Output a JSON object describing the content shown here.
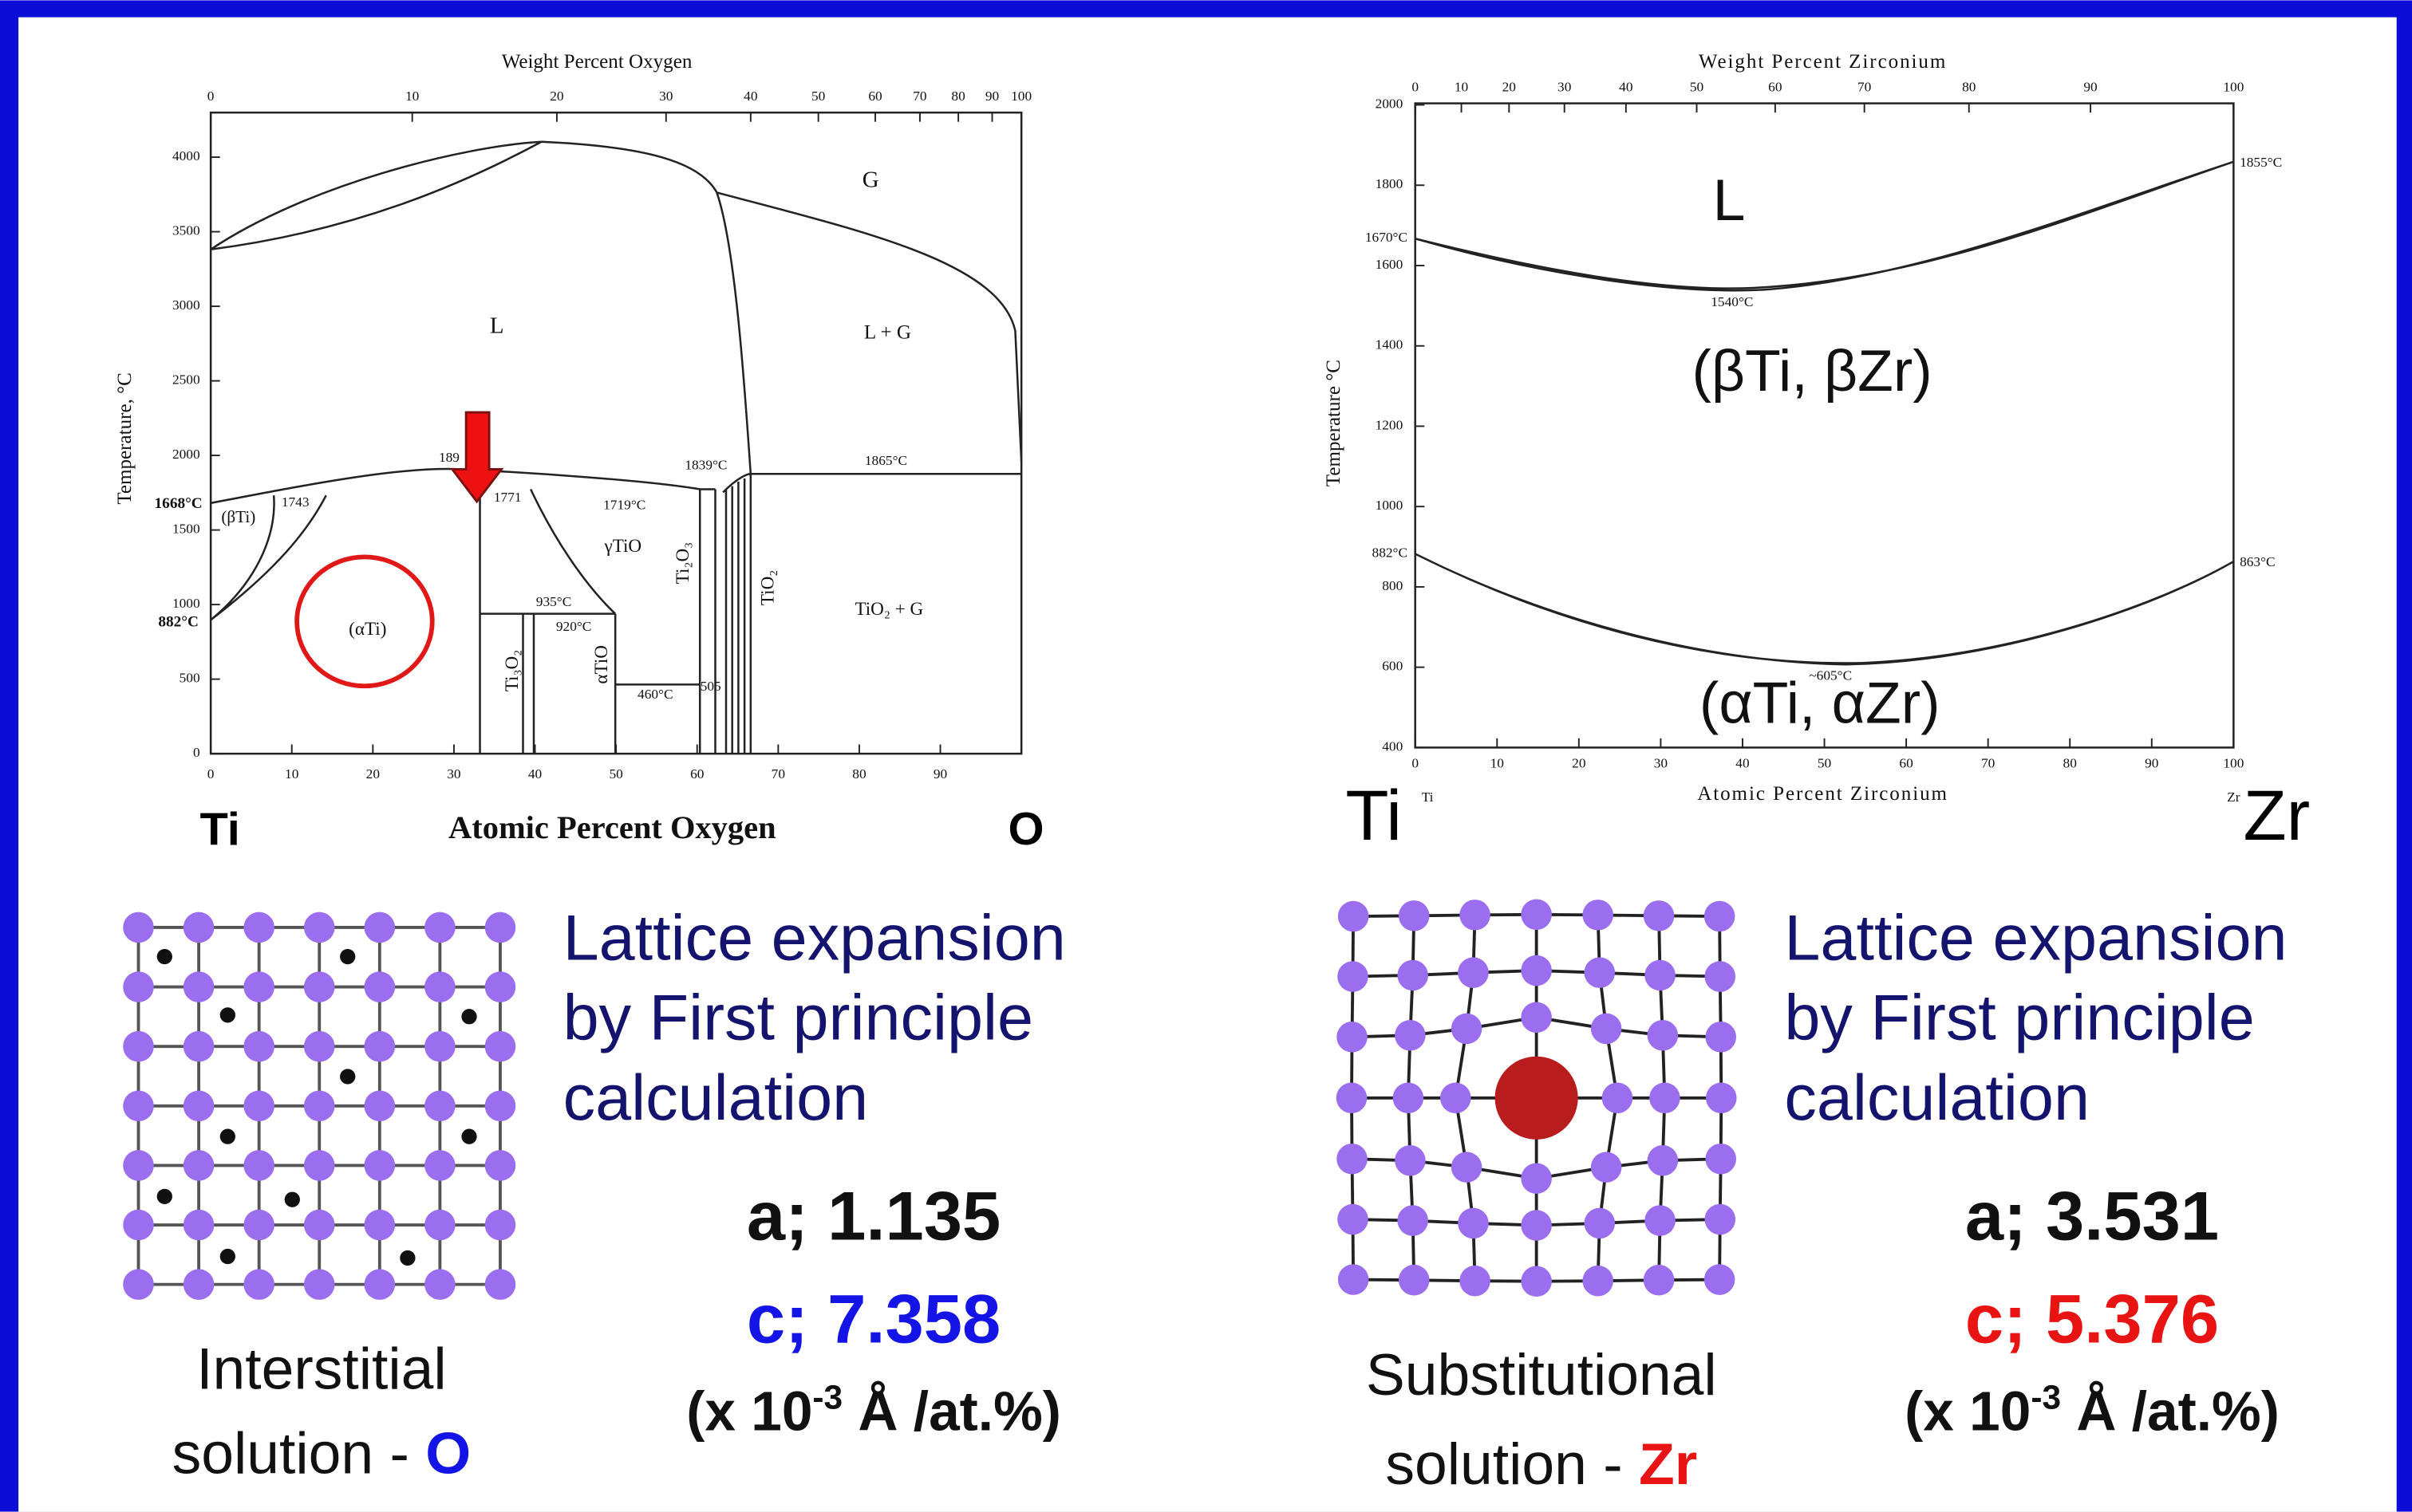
{
  "left_diagram": {
    "top_axis_title": "Weight Percent Oxygen",
    "top_ticks": [
      0,
      10,
      20,
      30,
      40,
      50,
      60,
      70,
      80,
      90,
      100
    ],
    "y_axis_title": "Temperature, °C",
    "y_ticks": [
      0,
      500,
      1000,
      1500,
      2000,
      2500,
      3000,
      3500,
      4000
    ],
    "x_ticks": [
      0,
      10,
      20,
      30,
      40,
      50,
      60,
      70,
      80,
      90
    ],
    "x_axis_title": "Atomic Percent Oxygen",
    "left_element": "Ti",
    "right_element": "O",
    "regions": {
      "gas": "G",
      "liquid": "L",
      "liquid_gas": "L + G",
      "beta": "(βTi)",
      "alpha": "(αTi)",
      "gamma": "γTiO",
      "tio2_gas": "TiO₂ + G",
      "ti3o2": "Ti₃O₂",
      "alpha_tio": "αTiO",
      "ti2o3": "Ti₂O₃",
      "tio2": "TiO₂"
    },
    "temperatures": {
      "ti_melt": "1668°C",
      "ti_transus": "882°C",
      "t1743": "1743",
      "t189": "189",
      "t1771": "1771",
      "t1719": "1719°C",
      "t1839": "1839°C",
      "t1865": "1865°C",
      "t935": "935°C",
      "t920": "920°C",
      "t460": "460°C",
      "t505": "505"
    }
  },
  "right_diagram": {
    "top_axis_title": "Weight Percent Zirconium",
    "top_ticks": [
      0,
      10,
      20,
      30,
      40,
      50,
      60,
      70,
      80,
      90,
      100
    ],
    "y_axis_title": "Temperature °C",
    "y_ticks": [
      400,
      600,
      800,
      1000,
      1200,
      1400,
      1600,
      1800,
      2000
    ],
    "x_ticks": [
      0,
      10,
      20,
      30,
      40,
      50,
      60,
      70,
      80,
      90,
      100
    ],
    "x_axis_title": "Atomic Percent Zirconium",
    "left_element": "Ti",
    "right_element": "Zr",
    "left_small": "Ti",
    "right_small": "Zr",
    "regions": {
      "liquid": "L",
      "beta": "(βTi, βZr)",
      "alpha": "(αTi, αZr)"
    },
    "temperatures": {
      "ti_melt": "1670°C",
      "ti_transus": "882°C",
      "zr_melt": "1855°C",
      "zr_transus": "863°C",
      "min_liquid": "1540°C",
      "min_alpha": "~605°C"
    }
  },
  "left_panel": {
    "heading": [
      "Lattice expansion",
      "by First principle",
      "calculation"
    ],
    "a": "a; 1.135",
    "c": "c; 7.358",
    "unit": {
      "open": "(x 10",
      "exponent": "-3",
      "close": " Å /at.%)"
    },
    "caption": [
      "Interstitial",
      "solution - "
    ],
    "solute": "O"
  },
  "right_panel": {
    "heading": [
      "Lattice expansion",
      "by First principle",
      "calculation"
    ],
    "a": "a; 3.531",
    "c": "c; 5.376",
    "unit": {
      "open": "(x 10",
      "exponent": "-3",
      "close": " Å /at.%)"
    },
    "caption": [
      "Substitutional",
      "solution - "
    ],
    "solute": "Zr"
  }
}
